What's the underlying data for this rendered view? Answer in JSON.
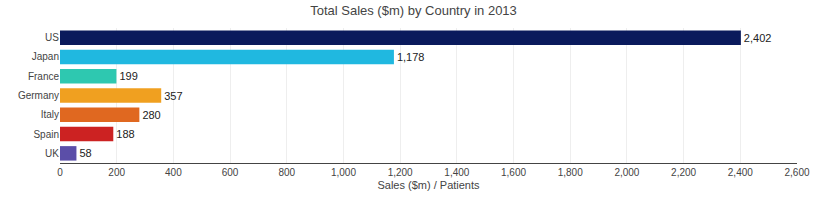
{
  "chart_data": {
    "type": "bar",
    "orientation": "horizontal",
    "title": "Total Sales ($m) by Country in 2013",
    "xlabel": "Sales ($m) / Patients",
    "categories": [
      "UK",
      "Spain",
      "Italy",
      "Germany",
      "France",
      "Japan",
      "US"
    ],
    "values": [
      58,
      188,
      280,
      357,
      199,
      1178,
      2402
    ],
    "value_labels": [
      "58",
      "188",
      "280",
      "357",
      "199",
      "1,178",
      "2,402"
    ],
    "data_labels": true,
    "colors": [
      "#5b4ea8",
      "#cc2222",
      "#e06820",
      "#f0a020",
      "#2ec8b0",
      "#20b8e0",
      "#0a1a5c"
    ],
    "xlim": [
      0,
      2600
    ],
    "xticks": [
      0,
      200,
      400,
      600,
      800,
      {
        "value": 1000,
        "label": "1,000"
      },
      {
        "value": 1200,
        "label": "1,200"
      },
      {
        "value": 1400,
        "label": "1,400"
      },
      {
        "value": 1600,
        "label": "1,600"
      },
      {
        "value": 1800,
        "label": "1,800"
      },
      {
        "value": 2000,
        "label": "2,000"
      },
      {
        "value": 2200,
        "label": "2,200"
      },
      {
        "value": 2400,
        "label": "2,400"
      },
      {
        "value": 2600,
        "label": "2,600"
      }
    ],
    "grid": true
  }
}
